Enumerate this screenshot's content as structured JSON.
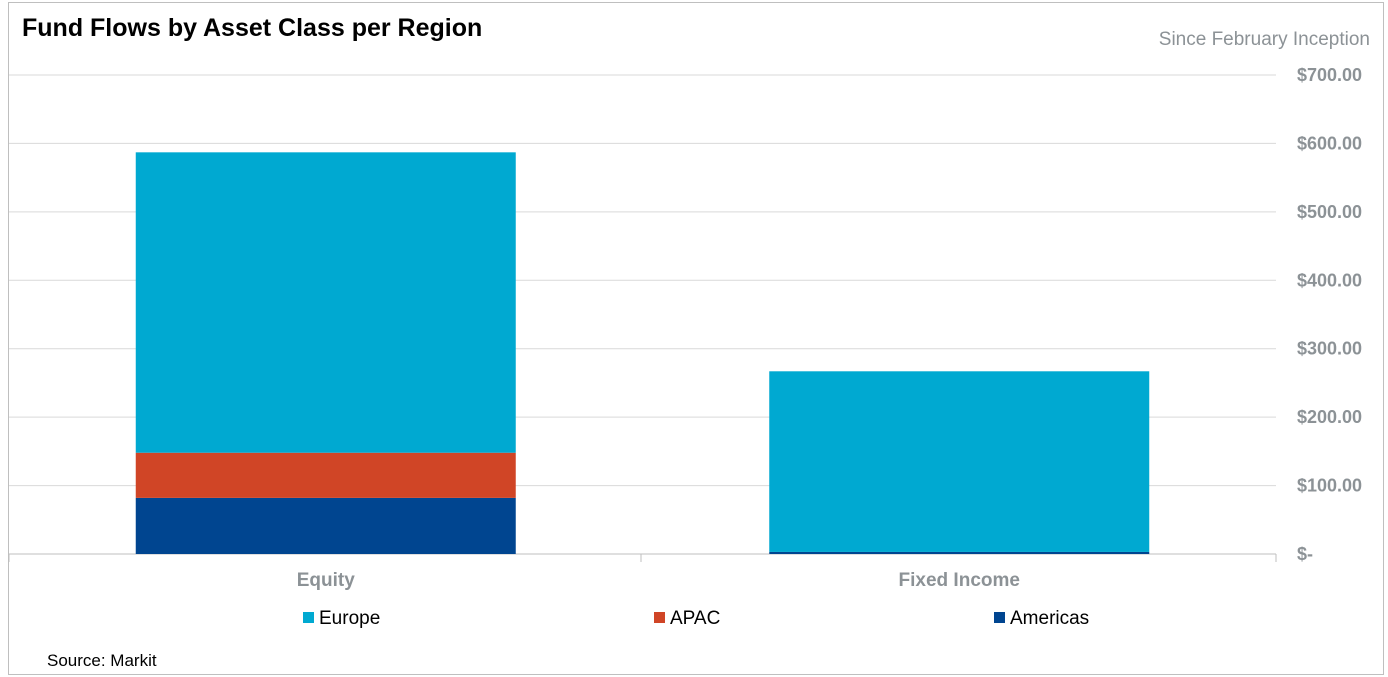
{
  "chart_data": {
    "type": "bar",
    "stacked": true,
    "title": "Fund Flows by Asset Class per Region",
    "subtitle": "Since February Inception",
    "source": "Source: Markit",
    "categories": [
      "Equity",
      "Fixed Income"
    ],
    "series": [
      {
        "name": "Americas",
        "color": "#004590",
        "values": [
          82,
          3
        ]
      },
      {
        "name": "APAC",
        "color": "#d04526",
        "values": [
          66,
          0
        ]
      },
      {
        "name": "Europe",
        "color": "#00a9d1",
        "values": [
          439,
          264
        ]
      }
    ],
    "legend_order": [
      "Europe",
      "APAC",
      "Americas"
    ],
    "legend_position": "bottom",
    "y_axis_position": "right",
    "ylim": [
      0,
      700
    ],
    "yticks": [
      0,
      100,
      200,
      300,
      400,
      500,
      600,
      700
    ],
    "ytick_labels": [
      "$-",
      "$100.00",
      "$200.00",
      "$300.00",
      "$400.00",
      "$500.00",
      "$600.00",
      "$700.00"
    ],
    "grid": true
  }
}
